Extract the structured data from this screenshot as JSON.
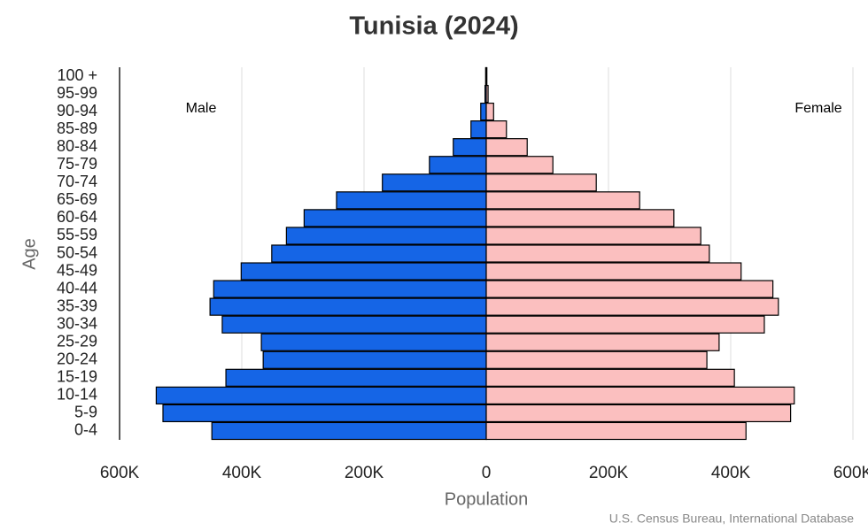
{
  "chart_data": {
    "type": "pyramid",
    "title": "Tunisia (2024)",
    "x_label": "Population",
    "y_label": "Age",
    "source": "U.S. Census Bureau, International Database",
    "categories": [
      "0-4",
      "5-9",
      "10-14",
      "15-19",
      "20-24",
      "25-29",
      "30-34",
      "35-39",
      "40-44",
      "45-49",
      "50-54",
      "55-59",
      "60-64",
      "65-69",
      "70-74",
      "75-79",
      "80-84",
      "85-89",
      "90-94",
      "95-99",
      "100 +"
    ],
    "series": [
      {
        "name": "Male",
        "color": "#1565e6",
        "values": [
          449000,
          529000,
          540000,
          426000,
          365000,
          368000,
          432000,
          452000,
          446000,
          401000,
          351000,
          327000,
          298000,
          245000,
          170000,
          93000,
          54000,
          25000,
          9000,
          2000,
          1000
        ]
      },
      {
        "name": "Female",
        "color": "#fbbfbf",
        "values": [
          425000,
          498000,
          504000,
          406000,
          361000,
          381000,
          455000,
          478000,
          469000,
          417000,
          365000,
          351000,
          307000,
          251000,
          180000,
          109000,
          67000,
          33000,
          12000,
          3000,
          1000
        ]
      }
    ],
    "xlim": [
      -600000,
      600000
    ],
    "xticks": [
      {
        "value": -600000,
        "label": "600K"
      },
      {
        "value": -400000,
        "label": "400K"
      },
      {
        "value": -200000,
        "label": "200K"
      },
      0,
      {
        "value": 200000,
        "label": "200K"
      },
      {
        "value": 400000,
        "label": "400K"
      },
      {
        "value": 600000,
        "label": "600K"
      }
    ],
    "grid": true
  }
}
